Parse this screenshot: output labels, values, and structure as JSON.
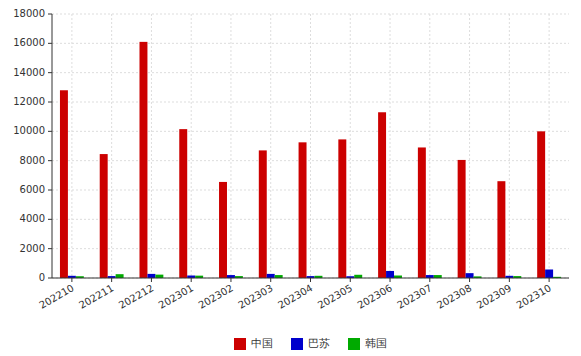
{
  "chart_data": {
    "type": "bar",
    "categories": [
      "202210",
      "202211",
      "202212",
      "202301",
      "202302",
      "202303",
      "202304",
      "202305",
      "202306",
      "202307",
      "202308",
      "202309",
      "202310"
    ],
    "series": [
      {
        "name": "中国",
        "color": "#cc0000",
        "values": [
          12800,
          8450,
          16100,
          10150,
          6550,
          8700,
          9250,
          9450,
          11300,
          8900,
          8050,
          6600,
          10000
        ]
      },
      {
        "name": "巴苏",
        "color": "#0000cc",
        "values": [
          150,
          130,
          280,
          170,
          200,
          280,
          130,
          120,
          480,
          200,
          330,
          150,
          580
        ]
      },
      {
        "name": "韩国",
        "color": "#00aa00",
        "values": [
          120,
          260,
          230,
          160,
          130,
          200,
          150,
          220,
          170,
          200,
          110,
          130,
          80
        ]
      }
    ],
    "ylim": [
      0,
      18000
    ],
    "yticks": [
      0,
      2000,
      4000,
      6000,
      8000,
      10000,
      12000,
      14000,
      16000,
      18000
    ],
    "grid": true,
    "legend": "bottom"
  }
}
